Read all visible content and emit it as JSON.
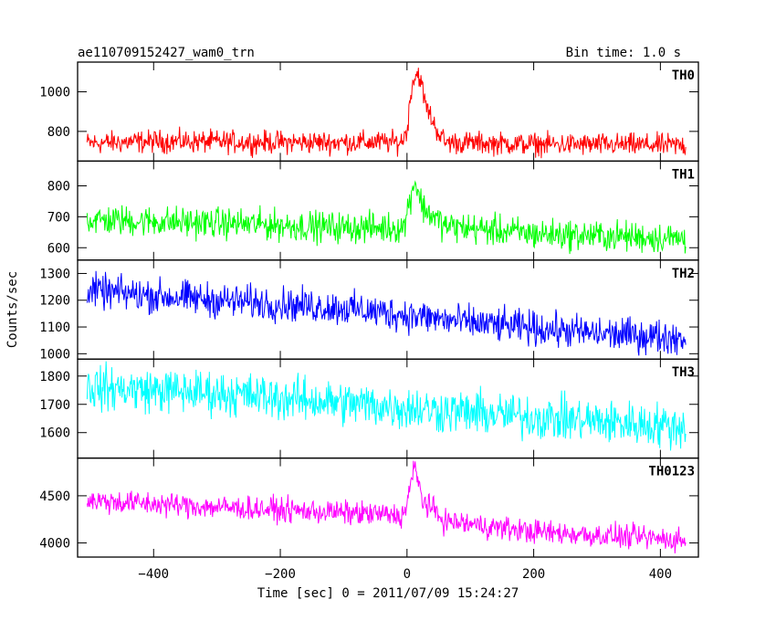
{
  "header": {
    "title": "ae110709152427_wam0_trn",
    "bin_time": "Bin time: 1.0 s"
  },
  "chart_data": {
    "type": "line",
    "xlabel": "Time [sec] 0 = 2011/07/09 15:24:27",
    "ylabel": "Counts/sec",
    "xlim": [
      -520,
      460
    ],
    "x_ticks": [
      -400,
      -200,
      0,
      200,
      400
    ],
    "x_tick_labels": [
      "−400",
      "−200",
      "0",
      "200",
      "400"
    ],
    "x_range_data": [
      -505,
      440
    ],
    "panels": [
      {
        "name": "TH0",
        "color": "#ff0000",
        "ylim": [
          650,
          1150
        ],
        "y_ticks": [
          800,
          1000
        ],
        "y_tick_labels": [
          "800",
          "1000"
        ],
        "profile": [
          [
            -505,
            740
          ],
          [
            -400,
            750
          ],
          [
            -200,
            745
          ],
          [
            -10,
            745
          ],
          [
            0,
            800
          ],
          [
            8,
            1050
          ],
          [
            18,
            1100
          ],
          [
            30,
            930
          ],
          [
            45,
            820
          ],
          [
            60,
            745
          ],
          [
            200,
            735
          ],
          [
            440,
            730
          ]
        ],
        "noise": 40
      },
      {
        "name": "TH1",
        "color": "#00ff00",
        "ylim": [
          560,
          880
        ],
        "y_ticks": [
          600,
          700,
          800
        ],
        "y_tick_labels": [
          "600",
          "700",
          "800"
        ],
        "profile": [
          [
            -505,
            690
          ],
          [
            -300,
            680
          ],
          [
            -100,
            665
          ],
          [
            -5,
            665
          ],
          [
            5,
            760
          ],
          [
            12,
            820
          ],
          [
            25,
            730
          ],
          [
            60,
            670
          ],
          [
            200,
            645
          ],
          [
            440,
            630
          ]
        ],
        "noise": 35
      },
      {
        "name": "TH2",
        "color": "#0000ff",
        "ylim": [
          980,
          1350
        ],
        "y_ticks": [
          1000,
          1100,
          1200,
          1300
        ],
        "y_tick_labels": [
          "1000",
          "1100",
          "1200",
          "1300"
        ],
        "profile": [
          [
            -505,
            1235
          ],
          [
            -300,
            1200
          ],
          [
            -100,
            1170
          ],
          [
            0,
            1145
          ],
          [
            100,
            1115
          ],
          [
            200,
            1095
          ],
          [
            300,
            1075
          ],
          [
            440,
            1060
          ]
        ],
        "noise": 45
      },
      {
        "name": "TH3",
        "color": "#00ffff",
        "ylim": [
          1510,
          1860
        ],
        "y_ticks": [
          1600,
          1700,
          1800
        ],
        "y_tick_labels": [
          "1600",
          "1700",
          "1800"
        ],
        "profile": [
          [
            -505,
            1760
          ],
          [
            -300,
            1740
          ],
          [
            -100,
            1705
          ],
          [
            100,
            1670
          ],
          [
            300,
            1640
          ],
          [
            440,
            1620
          ]
        ],
        "noise": 55
      },
      {
        "name": "TH0123",
        "color": "#ff00ff",
        "ylim": [
          3850,
          4900
        ],
        "y_ticks": [
          4000,
          4500
        ],
        "y_tick_labels": [
          "4000",
          "4500"
        ],
        "profile": [
          [
            -505,
            4450
          ],
          [
            -300,
            4380
          ],
          [
            -100,
            4320
          ],
          [
            -5,
            4290
          ],
          [
            5,
            4600
          ],
          [
            12,
            4800
          ],
          [
            25,
            4450
          ],
          [
            60,
            4230
          ],
          [
            200,
            4120
          ],
          [
            440,
            4030
          ]
        ],
        "noise": 90
      }
    ]
  }
}
